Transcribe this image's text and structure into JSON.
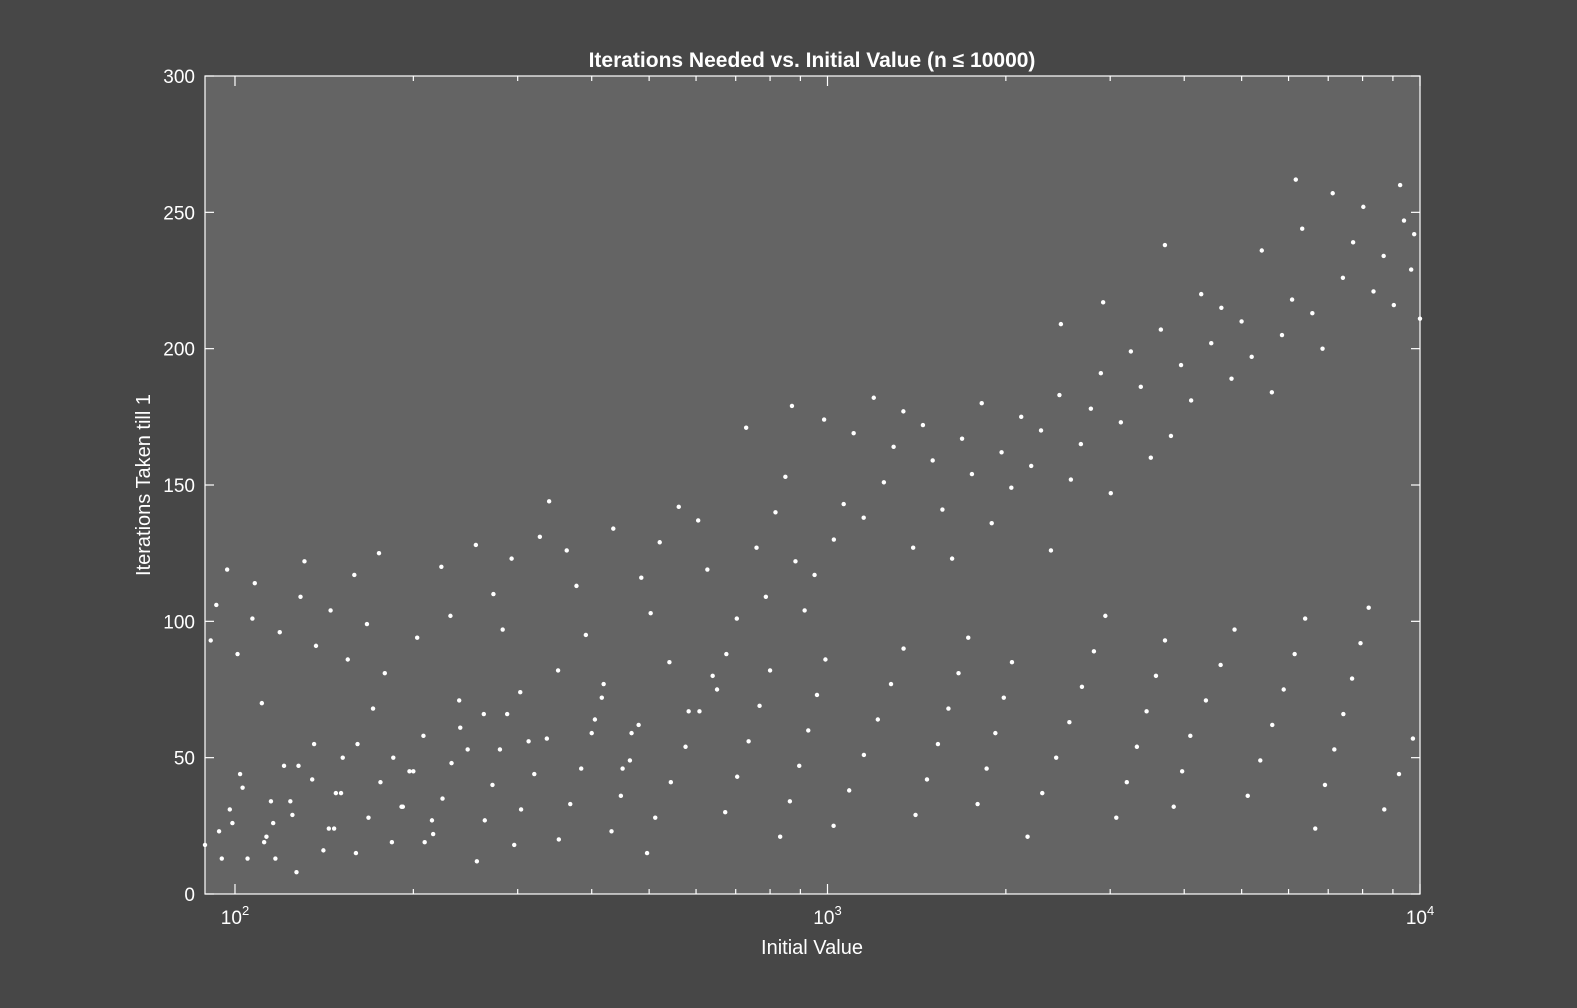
{
  "chart_data": {
    "type": "scatter",
    "title": "Iterations Needed vs. Initial Value (n ≤ 10000)",
    "xlabel": "Initial Value",
    "ylabel": "Iterations Taken till 1",
    "xscale": "log",
    "xlim": [
      89,
      10000
    ],
    "ylim": [
      0,
      300
    ],
    "grid": false,
    "legend": "none",
    "x_ticks": [
      {
        "value": 100,
        "base": "10",
        "exp": "2"
      },
      {
        "value": 1000,
        "base": "10",
        "exp": "3"
      },
      {
        "value": 10000,
        "base": "10",
        "exp": "4"
      }
    ],
    "y_ticks": [
      0,
      50,
      100,
      150,
      200,
      250,
      300
    ],
    "colors": {
      "figure_bg": "#474747",
      "axes_bg": "#646464",
      "axis": "#ffffff",
      "marker": "#ffffff"
    },
    "marker": {
      "shape": "dot",
      "color": "#ffffff"
    },
    "series": [
      {
        "x": [
          89,
          91,
          93,
          95,
          97,
          99,
          101,
          103,
          105,
          107,
          108,
          111,
          113,
          115,
          117,
          119,
          121,
          125,
          127,
          129,
          131,
          135,
          137,
          141,
          145,
          147,
          151,
          155,
          159,
          161,
          167,
          171,
          175,
          179,
          185,
          191,
          197,
          203,
          209,
          215,
          223,
          231,
          239,
          247,
          255,
          263,
          273,
          283,
          293,
          303,
          313,
          327,
          339,
          351,
          363,
          377,
          391,
          405,
          419,
          435,
          451,
          467,
          485,
          503,
          521,
          541,
          561,
          583,
          605,
          627,
          651,
          675,
          703,
          729,
          759,
          787,
          817,
          849,
          871,
          883,
          915,
          951,
          987,
          1025,
          1065,
          1107,
          1151,
          1197,
          1245,
          1293,
          1343,
          1395,
          1449,
          1505,
          1563,
          1623,
          1687,
          1753,
          1821,
          1893,
          1967,
          2043,
          2123,
          2207,
          2293,
          2383,
          2463,
          2477,
          2575,
          2677,
          2783,
          2893,
          2919,
          3007,
          3127,
          3251,
          3379,
          3513,
          3653,
          3711,
          3799,
          3951,
          4109,
          4273,
          4443,
          4621,
          4807,
          4999,
          5199,
          5407,
          5623,
          5849,
          6083,
          6171,
          6327,
          6581,
          6847,
          7123,
          7411,
          7711,
          8023,
          8347,
          8683,
          9033,
          9257,
          9397,
          9663,
          9777,
          9999
        ],
        "y": [
          18,
          93,
          106,
          13,
          119,
          26,
          88,
          39,
          13,
          101,
          114,
          70,
          21,
          34,
          13,
          96,
          47,
          29,
          8,
          109,
          122,
          42,
          91,
          16,
          104,
          24,
          37,
          86,
          117,
          55,
          99,
          68,
          125,
          81,
          50,
          32,
          45,
          94,
          19,
          27,
          120,
          102,
          71,
          53,
          128,
          66,
          110,
          97,
          123,
          74,
          56,
          131,
          144,
          82,
          126,
          113,
          95,
          64,
          77,
          134,
          46,
          59,
          116,
          103,
          129,
          85,
          142,
          67,
          137,
          119,
          75,
          88,
          101,
          171,
          127,
          109,
          140,
          153,
          179,
          122,
          104,
          117,
          174,
          130,
          143,
          169,
          138,
          182,
          151,
          164,
          177,
          127,
          172,
          159,
          141,
          123,
          167,
          154,
          180,
          136,
          162,
          149,
          175,
          157,
          170,
          126,
          183,
          209,
          152,
          165,
          178,
          191,
          217,
          147,
          173,
          199,
          186,
          160,
          207,
          238,
          168,
          194,
          181,
          220,
          202,
          215,
          189,
          210,
          197,
          236,
          184,
          205,
          218,
          262,
          244,
          213,
          200,
          257,
          226,
          239,
          252,
          221,
          234,
          216,
          260,
          247,
          229,
          242,
          211
        ]
      },
      {
        "x": [
          94,
          98,
          102,
          112,
          116,
          124,
          128,
          136,
          144,
          148,
          152,
          160,
          168,
          176,
          184,
          192,
          200,
          208,
          216,
          224,
          232,
          240,
          256,
          264,
          272,
          280,
          288,
          296,
          304,
          320,
          336,
          352,
          368,
          384,
          400,
          416,
          432,
          448,
          464,
          480,
          496,
          512,
          544,
          576,
          608,
          640,
          672,
          704,
          736,
          768,
          800,
          832,
          864,
          896,
          928,
          960,
          992,
          1024,
          1088,
          1152,
          1216,
          1280,
          1344,
          1408,
          1472,
          1536,
          1600,
          1664,
          1728,
          1792,
          1856,
          1920,
          1984,
          2048,
          2176,
          2304,
          2432,
          2560,
          2688,
          2816,
          2944,
          3072,
          3200,
          3328,
          3456,
          3584,
          3712,
          3840,
          3968,
          4096,
          4352,
          4608,
          4864,
          5120,
          5376,
          5632,
          5888,
          6144,
          6400,
          6656,
          6912,
          7168,
          7424,
          7680,
          7936,
          8192,
          8704,
          9216,
          9728
        ],
        "y": [
          23,
          31,
          44,
          19,
          26,
          34,
          47,
          55,
          24,
          37,
          50,
          15,
          28,
          41,
          19,
          32,
          45,
          58,
          22,
          35,
          48,
          61,
          12,
          27,
          40,
          53,
          66,
          18,
          31,
          44,
          57,
          20,
          33,
          46,
          59,
          72,
          23,
          36,
          49,
          62,
          15,
          28,
          41,
          54,
          67,
          80,
          30,
          43,
          56,
          69,
          82,
          21,
          34,
          47,
          60,
          73,
          86,
          25,
          38,
          51,
          64,
          77,
          90,
          29,
          42,
          55,
          68,
          81,
          94,
          33,
          46,
          59,
          72,
          85,
          21,
          37,
          50,
          63,
          76,
          89,
          102,
          28,
          41,
          54,
          67,
          80,
          93,
          32,
          45,
          58,
          71,
          84,
          97,
          36,
          49,
          62,
          75,
          88,
          101,
          24,
          40,
          53,
          66,
          79,
          92,
          105,
          31,
          44,
          57
        ]
      }
    ]
  }
}
